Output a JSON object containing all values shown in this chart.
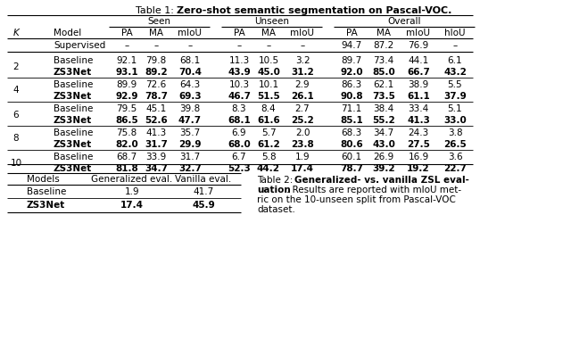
{
  "title_normal": "Table 1: ",
  "title_bold": "Zero-shot semantic segmentation on Pascal-VOC.",
  "col_headers": [
    "K",
    "Model",
    "PA",
    "MA",
    "mIoU",
    "PA",
    "MA",
    "mIoU",
    "PA",
    "MA",
    "mIoU",
    "hIoU"
  ],
  "group_labels": [
    "Seen",
    "Unseen",
    "Overall"
  ],
  "supervised": {
    "seen": [
      "–",
      "–",
      "–"
    ],
    "unseen": [
      "–",
      "–",
      "–"
    ],
    "overall": [
      "94.7",
      "87.2",
      "76.9",
      "–"
    ]
  },
  "k_groups": [
    {
      "k": "2",
      "rows": [
        {
          "model": "Baseline",
          "seen": [
            "92.1",
            "79.8",
            "68.1"
          ],
          "unseen": [
            "11.3",
            "10.5",
            "3.2"
          ],
          "overall": [
            "89.7",
            "73.4",
            "44.1",
            "6.1"
          ],
          "bold": false
        },
        {
          "model": "ZS3Net",
          "seen": [
            "93.1",
            "89.2",
            "70.4"
          ],
          "unseen": [
            "43.9",
            "45.0",
            "31.2"
          ],
          "overall": [
            "92.0",
            "85.0",
            "66.7",
            "43.2"
          ],
          "bold": true
        }
      ]
    },
    {
      "k": "4",
      "rows": [
        {
          "model": "Baseline",
          "seen": [
            "89.9",
            "72.6",
            "64.3"
          ],
          "unseen": [
            "10.3",
            "10.1",
            "2.9"
          ],
          "overall": [
            "86.3",
            "62.1",
            "38.9",
            "5.5"
          ],
          "bold": false
        },
        {
          "model": "ZS3Net",
          "seen": [
            "92.9",
            "78.7",
            "69.3"
          ],
          "unseen": [
            "46.7",
            "51.5",
            "26.1"
          ],
          "overall": [
            "90.8",
            "73.5",
            "61.1",
            "37.9"
          ],
          "bold": true
        }
      ]
    },
    {
      "k": "6",
      "rows": [
        {
          "model": "Baseline",
          "seen": [
            "79.5",
            "45.1",
            "39.8"
          ],
          "unseen": [
            "8.3",
            "8.4",
            "2.7"
          ],
          "overall": [
            "71.1",
            "38.4",
            "33.4",
            "5.1"
          ],
          "bold": false
        },
        {
          "model": "ZS3Net",
          "seen": [
            "86.5",
            "52.6",
            "47.7"
          ],
          "unseen": [
            "68.1",
            "61.6",
            "25.2"
          ],
          "overall": [
            "85.1",
            "55.2",
            "41.3",
            "33.0"
          ],
          "bold": true
        }
      ]
    },
    {
      "k": "8",
      "rows": [
        {
          "model": "Baseline",
          "seen": [
            "75.8",
            "41.3",
            "35.7"
          ],
          "unseen": [
            "6.9",
            "5.7",
            "2.0"
          ],
          "overall": [
            "68.3",
            "34.7",
            "24.3",
            "3.8"
          ],
          "bold": false
        },
        {
          "model": "ZS3Net",
          "seen": [
            "82.0",
            "31.7",
            "29.9"
          ],
          "unseen": [
            "68.0",
            "61.2",
            "23.8"
          ],
          "overall": [
            "80.6",
            "43.0",
            "27.5",
            "26.5"
          ],
          "bold": true
        }
      ]
    },
    {
      "k": "10",
      "rows": [
        {
          "model": "Baseline",
          "seen": [
            "68.7",
            "33.9",
            "31.7"
          ],
          "unseen": [
            "6.7",
            "5.8",
            "1.9"
          ],
          "overall": [
            "60.1",
            "26.9",
            "16.9",
            "3.6"
          ],
          "bold": false
        },
        {
          "model": "ZS3Net",
          "seen": [
            "81.8",
            "34.7",
            "32.7"
          ],
          "unseen": [
            "52.3",
            "44.2",
            "17.4"
          ],
          "overall": [
            "78.7",
            "39.2",
            "19.2",
            "22.7"
          ],
          "bold": true
        }
      ]
    }
  ],
  "table2_rows": [
    {
      "model": "Baseline",
      "gen": "1.9",
      "vanilla": "41.7",
      "bold": false
    },
    {
      "model": "ZS3Net",
      "gen": "17.4",
      "vanilla": "45.9",
      "bold": true
    }
  ],
  "table2_caption_parts": [
    {
      "text": "Table 2: ",
      "bold": false
    },
    {
      "text": "Generalized- vs. vanilla ZSL eval-\n",
      "bold": true
    },
    {
      "text": "uation",
      "bold": true
    },
    {
      "text": ". Results are reported with mIoU met-\nric on the 10-unseen split from Pascal-VOC\ndataset.",
      "bold": false
    }
  ]
}
